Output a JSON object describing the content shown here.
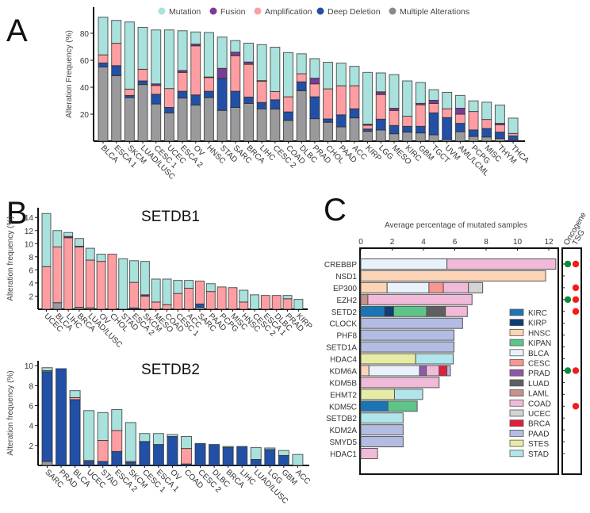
{
  "panels": {
    "a": "A",
    "b": "B",
    "c": "C"
  },
  "legend_a": {
    "mutation": "Mutation",
    "fusion": "Fusion",
    "amplification": "Amplification",
    "deep_deletion": "Deep Deletion",
    "multiple": "Multiple Alterations"
  },
  "colors": {
    "Multiple Alterations": "#9a9a9c",
    "Deep Deletion": "#2250a6",
    "Amplification": "#ff9ea2",
    "Fusion": "#7a3d97",
    "Mutation": "#a9e1dc"
  },
  "cancer_colors": {
    "KIRC": "#1a74b6",
    "KIRP": "#0e3f74",
    "HNSC": "#fdd4b6",
    "KIPAN": "#5fc489",
    "BLCA": "#e9f2fb",
    "CESC": "#f99692",
    "PRAD": "#9058a7",
    "LUAD": "#5f5f5f",
    "LAML": "#c8928a",
    "COAD": "#f0bad8",
    "UCEC": "#d4d4d4",
    "BRCA": "#e0203b",
    "PAAD": "#b3bde3",
    "STES": "#e7eca4",
    "STAD": "#b1e5ec"
  },
  "chart_data": [
    {
      "type": "bar",
      "stacked": true,
      "ylabel": "Alteration Frequency (%)",
      "yticks": [
        20,
        40,
        60,
        80
      ],
      "ylim": [
        0,
        100
      ],
      "legend_position": "top",
      "categories": [
        "BLCA",
        "ESCA 1",
        "SKCM",
        "LUAD/LUSC",
        "CESC 1",
        "UCEC",
        "ESCA 2",
        "OV",
        "HNSC",
        "STAD",
        "SARC",
        "BRCA",
        "LIHC",
        "CESC 2",
        "COAD",
        "DLBC",
        "PRAD",
        "CHOL",
        "PAAD",
        "ACC",
        "KIRP",
        "LGG",
        "MESO",
        "KIRC",
        "GBM",
        "TGCT",
        "UVM",
        "AML/LCML",
        "PCPG",
        "MISC",
        "THYM",
        "THCA"
      ],
      "series": [
        {
          "name": "Multiple Alterations",
          "values": [
            55,
            48.6,
            32.3,
            42,
            27.6,
            21,
            32,
            26.8,
            32.3,
            22.8,
            25,
            28,
            24,
            23.8,
            15.4,
            37.4,
            16.7,
            14,
            10.6,
            17.3,
            7.3,
            8.3,
            5.5,
            6.7,
            6.1,
            4.7,
            1.2,
            7,
            3.5,
            3.1,
            2,
            0.5
          ]
        },
        {
          "name": "Deep Deletion",
          "values": [
            3,
            7.4,
            1.6,
            2.7,
            7.2,
            4,
            5,
            7.5,
            4.7,
            23.7,
            12,
            4.7,
            4.7,
            6.9,
            6.3,
            6.6,
            16.2,
            2.5,
            8.9,
            6.7,
            1.7,
            8,
            6.1,
            4.3,
            4.9,
            16.3,
            16.3,
            6.2,
            4.8,
            6.3,
            4.7,
            3.4
          ]
        },
        {
          "name": "Amplification",
          "values": [
            6,
            16.6,
            4.7,
            8.6,
            6.5,
            14,
            14,
            36.4,
            10.2,
            0,
            26.4,
            24.3,
            15.8,
            6.1,
            11.2,
            6,
            9.6,
            22.3,
            21.6,
            17.1,
            2.8,
            18.3,
            11.2,
            7.5,
            16,
            7,
            6.5,
            6.8,
            13.7,
            6.7,
            5.5,
            1.8
          ]
        },
        {
          "name": "Fusion",
          "values": [
            0,
            0,
            0,
            0,
            1.2,
            0,
            1.4,
            1.3,
            0.4,
            7.5,
            2.6,
            1.7,
            0.4,
            0,
            0,
            0,
            4.2,
            0,
            0,
            0,
            0.8,
            2,
            1.6,
            0,
            1,
            2.3,
            0,
            4.4,
            0,
            0,
            1,
            0
          ]
        },
        {
          "name": "Mutation",
          "values": [
            28,
            17,
            49.8,
            31.1,
            40,
            43.5,
            29.5,
            9,
            33,
            23.2,
            8.6,
            14,
            26.7,
            32.9,
            32.8,
            14.8,
            14.5,
            19.7,
            16.8,
            14.4,
            38.4,
            14,
            25,
            26.2,
            15.5,
            7.9,
            12.2,
            9.5,
            7.9,
            12.8,
            13.6,
            11.4
          ]
        }
      ]
    },
    {
      "type": "bar",
      "stacked": true,
      "title": "SETDB1",
      "ylabel": "Alteration frequency (%)",
      "yticks": [
        2,
        4,
        6,
        8,
        10,
        12,
        14
      ],
      "ylim": [
        0,
        15
      ],
      "categories": [
        "UCEC",
        "BLCA",
        "LIHC",
        "BRCA",
        "LUAD/LUSC",
        "OV",
        "CHOL",
        "STAD",
        "ESCA 2",
        "SKCM",
        "MESO",
        "COAD",
        "CESC 1",
        "ACC",
        "SARC",
        "PAAD",
        "PCPG",
        "MISC",
        "HNSC",
        "CESC 2",
        "ESCA 1",
        "DLBC",
        "PRAD",
        "KIRP"
      ],
      "series": [
        {
          "name": "Multiple Alterations",
          "values": [
            0,
            1.0,
            0,
            0.3,
            0.2,
            0,
            0,
            0,
            0,
            0,
            0,
            0,
            0,
            0,
            0.3,
            0,
            0,
            0,
            0,
            0,
            0,
            0,
            0,
            0
          ]
        },
        {
          "name": "Deep Deletion",
          "values": [
            0,
            0,
            0,
            0,
            0,
            0,
            0,
            0,
            0.2,
            0,
            0,
            0,
            0,
            0,
            0.5,
            0,
            0,
            0,
            0,
            0,
            0,
            0,
            0,
            0
          ]
        },
        {
          "name": "Amplification",
          "values": [
            6.5,
            8.5,
            10.9,
            9.2,
            7.3,
            7.3,
            8.4,
            0,
            3.9,
            2.0,
            1.1,
            0.7,
            2.4,
            3.2,
            3.5,
            2.7,
            3.4,
            3.3,
            1.1,
            0,
            2.1,
            2.1,
            1.6,
            0
          ]
        },
        {
          "name": "Fusion",
          "values": [
            0,
            0,
            0.2,
            0.1,
            0,
            0,
            0,
            0,
            0,
            0.2,
            0,
            0,
            0,
            0,
            0,
            0,
            0,
            0,
            0,
            0,
            0,
            0,
            0,
            0
          ]
        },
        {
          "name": "Mutation",
          "values": [
            8.1,
            2.5,
            0.6,
            1.2,
            1.8,
            1.1,
            0,
            7.7,
            3.3,
            5.1,
            3.5,
            3.9,
            2.0,
            1.2,
            0,
            1.2,
            0,
            0,
            1.8,
            2.2,
            0,
            0,
            0.5,
            1.5
          ]
        }
      ]
    },
    {
      "type": "bar",
      "stacked": true,
      "title": "SETDB2",
      "ylabel": "Alteration frequency (%)",
      "yticks": [
        2,
        4,
        6,
        8,
        10
      ],
      "ylim": [
        0,
        10.5
      ],
      "categories": [
        "SARC",
        "PRAD",
        "BLCA",
        "UCEC",
        "STAD",
        "ESCA 2",
        "SKCM",
        "CESC 1",
        "ESCA 1",
        "OV",
        "COAD",
        "CESC 2",
        "DLBC",
        "BRCA",
        "LIHC",
        "LUAD/LUSC",
        "LGG",
        "GBM",
        "ACC"
      ],
      "series": [
        {
          "name": "Multiple Alterations",
          "values": [
            0.4,
            0,
            0,
            0,
            0,
            0,
            0,
            0,
            0,
            0,
            0,
            0,
            0,
            0,
            0,
            0,
            0,
            0,
            0
          ]
        },
        {
          "name": "Deep Deletion",
          "values": [
            9.0,
            9.7,
            6.6,
            0.4,
            0.4,
            1.4,
            0.3,
            2.4,
            2.1,
            2.9,
            0.15,
            2.2,
            2.1,
            1.8,
            1.9,
            0.6,
            1.6,
            1.0,
            0
          ]
        },
        {
          "name": "Amplification",
          "values": [
            0.1,
            0,
            0.2,
            0.1,
            2.1,
            2.1,
            0.1,
            0,
            0,
            0,
            1.55,
            0,
            0,
            0,
            0,
            0,
            0,
            0,
            0
          ]
        },
        {
          "name": "Fusion",
          "values": [
            0,
            0,
            0,
            0,
            0,
            0,
            0,
            0,
            0,
            0,
            0,
            0,
            0,
            0,
            0,
            0,
            0,
            0,
            0
          ]
        },
        {
          "name": "Mutation",
          "values": [
            0.3,
            0,
            0.7,
            5.0,
            2.8,
            2.1,
            3.9,
            0.8,
            1.1,
            0.2,
            1.2,
            0,
            0,
            0.1,
            0,
            1.2,
            0.15,
            0.5,
            1.1
          ]
        }
      ]
    },
    {
      "type": "bar",
      "orientation": "horizontal",
      "stacked": true,
      "xlabel": "Average percentage of mutated samples",
      "xticks": [
        0,
        2,
        4,
        6,
        8,
        10,
        12
      ],
      "xlim": [
        0,
        12.7
      ],
      "annotation_headers": [
        "Oncogene",
        "TSG"
      ],
      "legend": [
        "KIRC",
        "KIRP",
        "HNSC",
        "KIPAN",
        "BLCA",
        "CESC",
        "PRAD",
        "LUAD",
        "LAML",
        "COAD",
        "UCEC",
        "BRCA",
        "PAAD",
        "STES",
        "STAD"
      ],
      "legend_position": "bottom-right",
      "rows": [
        {
          "gene": "CREBBP",
          "oncogene": true,
          "tsg": true,
          "segments": [
            [
              "BLCA",
              5.5
            ],
            [
              "COAD",
              6.95
            ]
          ]
        },
        {
          "gene": "NSD1",
          "oncogene": false,
          "tsg": false,
          "segments": [
            [
              "HNSC",
              11.8
            ]
          ]
        },
        {
          "gene": "EP300",
          "oncogene": false,
          "tsg": true,
          "segments": [
            [
              "HNSC",
              1.68
            ],
            [
              "BLCA",
              2.67
            ],
            [
              "CESC",
              0.92
            ],
            [
              "COAD",
              1.6
            ],
            [
              "UCEC",
              0.91
            ]
          ]
        },
        {
          "gene": "EZH2",
          "oncogene": true,
          "tsg": true,
          "segments": [
            [
              "LAML",
              0.45
            ],
            [
              "COAD",
              6.65
            ]
          ]
        },
        {
          "gene": "SETD2",
          "oncogene": false,
          "tsg": true,
          "segments": [
            [
              "KIRC",
              1.5
            ],
            [
              "KIRP",
              0.6
            ],
            [
              "KIPAN",
              2.1
            ],
            [
              "LUAD",
              1.2
            ],
            [
              "COAD",
              1.4
            ]
          ]
        },
        {
          "gene": "CLOCK",
          "oncogene": false,
          "tsg": false,
          "segments": [
            [
              "PAAD",
              6.5
            ]
          ]
        },
        {
          "gene": "PHF8",
          "oncogene": false,
          "tsg": false,
          "segments": [
            [
              "PAAD",
              5.95
            ]
          ]
        },
        {
          "gene": "SETD1A",
          "oncogene": false,
          "tsg": false,
          "segments": [
            [
              "PAAD",
              5.95
            ]
          ]
        },
        {
          "gene": "HDAC4",
          "oncogene": false,
          "tsg": false,
          "segments": [
            [
              "STES",
              3.5
            ],
            [
              "STAD",
              2.4
            ]
          ]
        },
        {
          "gene": "KDM6A",
          "oncogene": true,
          "tsg": true,
          "segments": [
            [
              "HNSC",
              0.52
            ],
            [
              "BLCA",
              3.23
            ],
            [
              "PRAD",
              0.43
            ],
            [
              "COAD",
              0.82
            ],
            [
              "BRCA",
              0.5
            ],
            [
              "PAAD",
              0.22
            ]
          ]
        },
        {
          "gene": "KDM5B",
          "oncogene": false,
          "tsg": false,
          "segments": [
            [
              "COAD",
              5.0
            ]
          ]
        },
        {
          "gene": "EHMT2",
          "oncogene": false,
          "tsg": false,
          "segments": [
            [
              "STES",
              2.15
            ],
            [
              "STAD",
              1.8
            ]
          ]
        },
        {
          "gene": "KDM5C",
          "oncogene": false,
          "tsg": true,
          "segments": [
            [
              "KIRC",
              1.73
            ],
            [
              "KIPAN",
              1.87
            ]
          ]
        },
        {
          "gene": "SETDB2",
          "oncogene": false,
          "tsg": false,
          "segments": [
            [
              "STAD",
              2.7
            ]
          ]
        },
        {
          "gene": "KDM2A",
          "oncogene": false,
          "tsg": false,
          "segments": [
            [
              "PAAD",
              2.7
            ]
          ]
        },
        {
          "gene": "SMYD5",
          "oncogene": false,
          "tsg": false,
          "segments": [
            [
              "PAAD",
              2.7
            ]
          ]
        },
        {
          "gene": "HDAC1",
          "oncogene": false,
          "tsg": false,
          "segments": [
            [
              "COAD",
              1.07
            ]
          ]
        }
      ]
    }
  ]
}
